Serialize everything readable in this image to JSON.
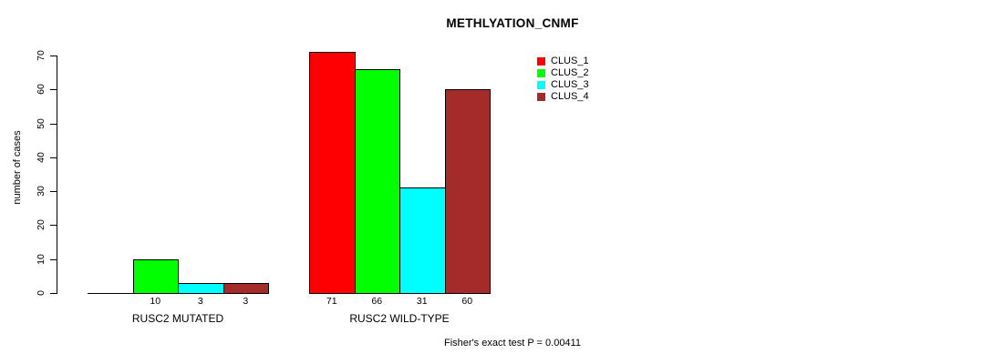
{
  "chart_data": {
    "type": "bar",
    "title": "METHLYATION_CNMF",
    "ylabel": "number of cases",
    "xlabel": "",
    "ylim": [
      0,
      70
    ],
    "yticks": [
      "0",
      "10",
      "20",
      "30",
      "40",
      "50",
      "60",
      "70"
    ],
    "ytick_values": [
      0,
      10,
      20,
      30,
      40,
      50,
      60,
      70
    ],
    "categories": [
      "RUSC2 MUTATED",
      "RUSC2 WILD-TYPE"
    ],
    "series": [
      {
        "name": "CLUS_1",
        "color": "#ff0000",
        "values": [
          0,
          71
        ]
      },
      {
        "name": "CLUS_2",
        "color": "#00ff00",
        "values": [
          10,
          66
        ]
      },
      {
        "name": "CLUS_3",
        "color": "#00ffff",
        "values": [
          3,
          31
        ]
      },
      {
        "name": "CLUS_4",
        "color": "#a52a2a",
        "values": [
          3,
          60
        ]
      }
    ],
    "bar_labels": [
      [
        null,
        "10",
        "3",
        "3"
      ],
      [
        "71",
        "66",
        "31",
        "60"
      ]
    ],
    "legend_position": "top-right",
    "grid": false,
    "annotation": "Fisher's exact test P = 0.00411"
  }
}
